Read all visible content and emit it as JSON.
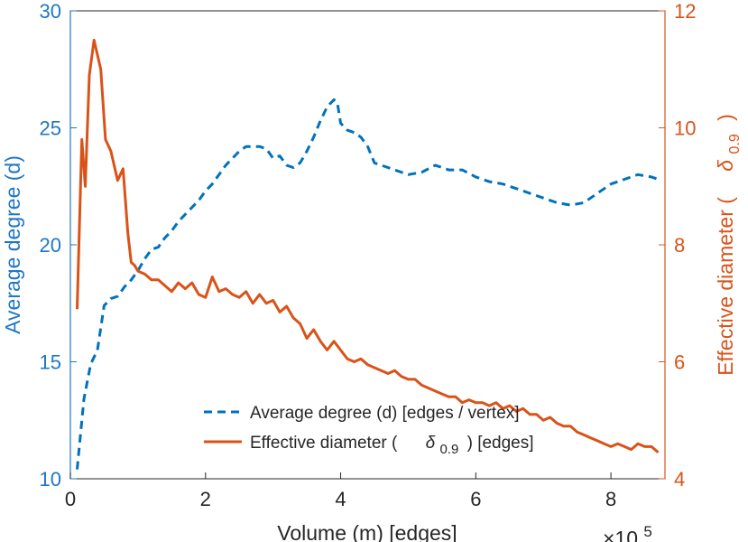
{
  "chart_data": {
    "type": "line",
    "xlabel": "Volume (m) [edges]",
    "x_exponent_label": "×10",
    "x_exponent_power": "5",
    "xlim": [
      0,
      8.8
    ],
    "xticks": [
      "0",
      "2",
      "4",
      "6",
      "8"
    ],
    "left_axis": {
      "label": "Average degree (d)",
      "ylim": [
        10,
        30
      ],
      "ticks": [
        "10",
        "15",
        "20",
        "25",
        "30"
      ],
      "color": "#1f77c4"
    },
    "right_axis": {
      "label_prefix": "Effective diameter (",
      "label_symbol": "δ",
      "label_subscript": "0.9",
      "label_suffix": ")",
      "ylim": [
        4,
        12
      ],
      "ticks": [
        "4",
        "6",
        "8",
        "10",
        "12"
      ],
      "color": "#d95319"
    },
    "grid": false,
    "legend_position": "bottom-right",
    "series": [
      {
        "name": "Average degree (d) [edges / vertex]",
        "axis": "left",
        "style": "dashed",
        "color": "#0072bd",
        "x": [
          0.1,
          0.2,
          0.3,
          0.4,
          0.5,
          0.6,
          0.7,
          0.8,
          0.9,
          1.0,
          1.1,
          1.2,
          1.3,
          1.4,
          1.5,
          1.6,
          1.7,
          1.8,
          1.9,
          2.0,
          2.1,
          2.2,
          2.3,
          2.4,
          2.5,
          2.6,
          2.7,
          2.8,
          2.9,
          3.0,
          3.1,
          3.2,
          3.3,
          3.4,
          3.5,
          3.6,
          3.7,
          3.8,
          3.9,
          3.95,
          4.0,
          4.1,
          4.2,
          4.3,
          4.4,
          4.5,
          4.6,
          4.8,
          5.0,
          5.2,
          5.4,
          5.6,
          5.8,
          6.0,
          6.2,
          6.4,
          6.6,
          6.8,
          7.0,
          7.2,
          7.4,
          7.6,
          7.8,
          8.0,
          8.2,
          8.4,
          8.6,
          8.7
        ],
        "y": [
          10.4,
          13.4,
          14.9,
          15.5,
          17.4,
          17.7,
          17.8,
          18.2,
          18.5,
          18.9,
          19.4,
          19.8,
          19.9,
          20.3,
          20.6,
          21.0,
          21.3,
          21.6,
          21.9,
          22.3,
          22.6,
          23.0,
          23.4,
          23.7,
          24.0,
          24.2,
          24.2,
          24.2,
          24.1,
          23.7,
          23.8,
          23.4,
          23.3,
          23.5,
          24.0,
          24.6,
          25.3,
          25.9,
          26.2,
          26.1,
          25.2,
          24.9,
          24.8,
          24.6,
          24.2,
          23.5,
          23.4,
          23.2,
          23.0,
          23.1,
          23.4,
          23.2,
          23.2,
          22.9,
          22.7,
          22.6,
          22.4,
          22.2,
          22.0,
          21.8,
          21.7,
          21.8,
          22.2,
          22.6,
          22.8,
          23.0,
          22.9,
          22.8
        ]
      },
      {
        "name_prefix": "Effective diameter (",
        "name_symbol": "δ",
        "name_subscript": "0.9",
        "name_suffix": ") [edges]",
        "axis": "right",
        "style": "solid",
        "color": "#d95319",
        "x": [
          0.1,
          0.17,
          0.22,
          0.28,
          0.35,
          0.45,
          0.52,
          0.6,
          0.7,
          0.78,
          0.85,
          0.9,
          0.95,
          1.0,
          1.1,
          1.2,
          1.3,
          1.4,
          1.5,
          1.6,
          1.7,
          1.8,
          1.9,
          2.0,
          2.1,
          2.2,
          2.3,
          2.4,
          2.5,
          2.6,
          2.7,
          2.8,
          2.9,
          3.0,
          3.1,
          3.2,
          3.3,
          3.4,
          3.5,
          3.6,
          3.7,
          3.8,
          3.9,
          4.0,
          4.1,
          4.2,
          4.3,
          4.4,
          4.5,
          4.6,
          4.7,
          4.8,
          4.9,
          5.0,
          5.1,
          5.2,
          5.3,
          5.4,
          5.5,
          5.6,
          5.7,
          5.8,
          5.9,
          6.0,
          6.1,
          6.2,
          6.3,
          6.4,
          6.5,
          6.6,
          6.7,
          6.8,
          6.9,
          7.0,
          7.1,
          7.2,
          7.3,
          7.4,
          7.5,
          7.6,
          7.7,
          7.8,
          7.9,
          8.0,
          8.1,
          8.2,
          8.3,
          8.4,
          8.5,
          8.6,
          8.7
        ],
        "y": [
          6.9,
          9.8,
          9.0,
          10.9,
          11.5,
          11.0,
          9.8,
          9.6,
          9.1,
          9.3,
          8.2,
          7.7,
          7.65,
          7.55,
          7.5,
          7.4,
          7.4,
          7.3,
          7.2,
          7.35,
          7.25,
          7.35,
          7.15,
          7.1,
          7.45,
          7.2,
          7.25,
          7.15,
          7.1,
          7.2,
          7.0,
          7.15,
          7.0,
          7.05,
          6.85,
          6.95,
          6.75,
          6.65,
          6.4,
          6.55,
          6.35,
          6.2,
          6.35,
          6.2,
          6.05,
          6.0,
          6.05,
          5.95,
          5.9,
          5.85,
          5.8,
          5.85,
          5.75,
          5.7,
          5.7,
          5.6,
          5.55,
          5.5,
          5.45,
          5.4,
          5.4,
          5.3,
          5.35,
          5.3,
          5.3,
          5.25,
          5.3,
          5.2,
          5.25,
          5.15,
          5.2,
          5.1,
          5.1,
          5.0,
          5.05,
          4.95,
          4.9,
          4.9,
          4.8,
          4.75,
          4.7,
          4.65,
          4.6,
          4.55,
          4.6,
          4.55,
          4.5,
          4.6,
          4.55,
          4.55,
          4.45
        ]
      }
    ]
  }
}
